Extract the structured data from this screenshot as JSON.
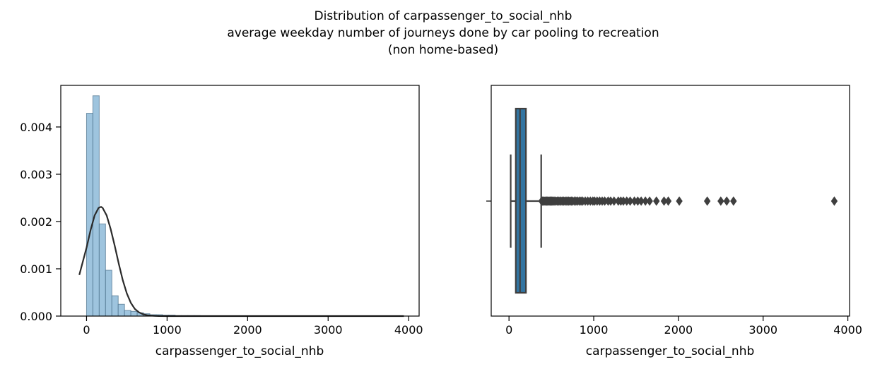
{
  "suptitle": {
    "line1": "Distribution of carpassenger_to_social_nhb",
    "line2": "average weekday number of journeys done by car pooling to recreation",
    "line3": "(non home-based)"
  },
  "colors": {
    "hist": "#9ec4de",
    "hist_edge": "#4a6f8a",
    "kde": "#2b2b2b",
    "box": "#3274a1",
    "box_edge": "#3f3f3f"
  },
  "chart_data": [
    {
      "type": "histogram",
      "xlabel": "carpassenger_to_social_nhb",
      "ylabel": "",
      "xlim": [
        -320,
        4130
      ],
      "ylim": [
        0,
        0.00488
      ],
      "xticks": [
        0,
        1000,
        2000,
        3000,
        4000
      ],
      "yticks": [
        0.0,
        0.001,
        0.002,
        0.003,
        0.004
      ],
      "ytick_labels": [
        "0.000",
        "0.001",
        "0.002",
        "0.003",
        "0.004"
      ],
      "bins": {
        "start": 0,
        "width": 78.6,
        "density": [
          0.00429,
          0.00466,
          0.00195,
          0.00097,
          0.00043,
          0.00025,
          0.00012,
          0.0001,
          7e-05,
          5e-05,
          3e-05,
          3e-05,
          2e-05,
          2e-05,
          1e-05,
          1e-05,
          1e-05,
          1e-05,
          5e-06,
          5e-06,
          5e-06,
          5e-06,
          5e-06,
          5e-06,
          5e-06,
          5e-06,
          5e-06,
          5e-06,
          5e-06,
          5e-06,
          5e-06,
          5e-06,
          5e-06,
          5e-06,
          5e-06,
          5e-06,
          5e-06,
          5e-06,
          5e-06,
          5e-06,
          5e-06,
          5e-06,
          5e-06,
          5e-06,
          5e-06,
          5e-06,
          5e-06,
          5e-06,
          5e-06,
          5e-06
        ]
      },
      "kde": {
        "x": [
          -90,
          0,
          50,
          100,
          150,
          180,
          200,
          250,
          300,
          350,
          400,
          450,
          500,
          550,
          600,
          650,
          700,
          750,
          800,
          850,
          900,
          1000,
          1200,
          1500,
          2000,
          3000,
          3940
        ],
        "y": [
          0.00087,
          0.00145,
          0.00182,
          0.00213,
          0.00229,
          0.00231,
          0.00229,
          0.00213,
          0.00184,
          0.00149,
          0.00111,
          0.00076,
          0.00048,
          0.00028,
          0.00015,
          8e-05,
          4e-05,
          2e-05,
          1e-05,
          5e-06,
          2e-06,
          0,
          0,
          0,
          0,
          0,
          0
        ]
      }
    },
    {
      "type": "box",
      "xlabel": "carpassenger_to_social_nhb",
      "xlim": [
        -210,
        4020
      ],
      "xticks": [
        0,
        1000,
        2000,
        3000,
        4000
      ],
      "box": {
        "whisker_low": 20,
        "q1": 80,
        "median": 130,
        "q3": 200,
        "whisker_high": 380
      },
      "outliers": [
        385,
        395,
        405,
        415,
        425,
        435,
        445,
        455,
        465,
        475,
        485,
        495,
        505,
        515,
        525,
        540,
        555,
        570,
        585,
        600,
        615,
        630,
        645,
        660,
        675,
        690,
        705,
        720,
        735,
        750,
        770,
        790,
        810,
        830,
        850,
        870,
        900,
        930,
        960,
        990,
        1010,
        1040,
        1070,
        1100,
        1130,
        1170,
        1200,
        1240,
        1290,
        1320,
        1350,
        1390,
        1430,
        1480,
        1520,
        1560,
        1610,
        1660,
        1740,
        1830,
        1880,
        2010,
        2340,
        2500,
        2570,
        2650,
        3840
      ]
    }
  ]
}
